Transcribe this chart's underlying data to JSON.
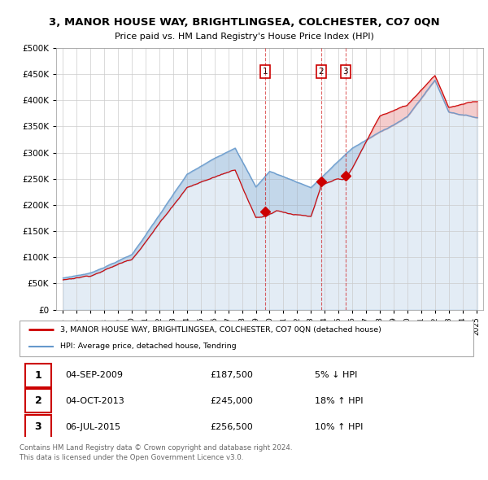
{
  "title": "3, MANOR HOUSE WAY, BRIGHTLINGSEA, COLCHESTER, CO7 0QN",
  "subtitle": "Price paid vs. HM Land Registry's House Price Index (HPI)",
  "legend_line1": "3, MANOR HOUSE WAY, BRIGHTLINGSEA, COLCHESTER, CO7 0QN (detached house)",
  "legend_line2": "HPI: Average price, detached house, Tendring",
  "table_rows": [
    {
      "num": "1",
      "date": "04-SEP-2009",
      "price": "£187,500",
      "change": "5% ↓ HPI"
    },
    {
      "num": "2",
      "date": "04-OCT-2013",
      "price": "£245,000",
      "change": "18% ↑ HPI"
    },
    {
      "num": "3",
      "date": "06-JUL-2015",
      "price": "£256,500",
      "change": "10% ↑ HPI"
    }
  ],
  "footer": "Contains HM Land Registry data © Crown copyright and database right 2024.\nThis data is licensed under the Open Government Licence v3.0.",
  "sale_dates": [
    2009.67,
    2013.75,
    2015.5
  ],
  "sale_prices": [
    187500,
    245000,
    256500
  ],
  "vline_dates": [
    2009.67,
    2013.75,
    2015.5
  ],
  "label_nums": [
    "1",
    "2",
    "3"
  ],
  "red_color": "#cc0000",
  "blue_color": "#6699cc",
  "blue_fill": "#ddeeff",
  "bg_color": "#ffffff",
  "grid_color": "#cccccc",
  "ylim": [
    0,
    500000
  ],
  "yticks": [
    0,
    50000,
    100000,
    150000,
    200000,
    250000,
    300000,
    350000,
    400000,
    450000,
    500000
  ],
  "xlim_start": 1994.5,
  "xlim_end": 2025.5
}
